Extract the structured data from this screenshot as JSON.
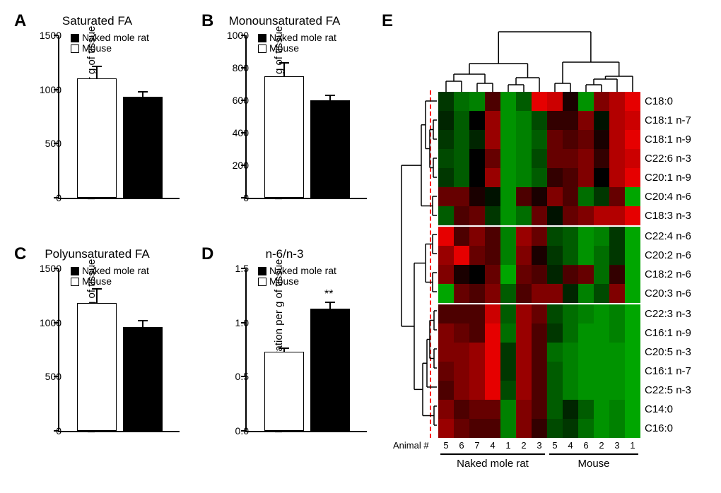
{
  "panels": {
    "A": {
      "letter": "A",
      "title": "Saturated FA",
      "ylabel": "Relative concentration per g of tissue",
      "ylim": [
        0,
        1500
      ],
      "ytick_step": 500,
      "bars": [
        {
          "label": "Mouse",
          "value": 1100,
          "err": 110,
          "color": "#ffffff"
        },
        {
          "label": "Naked mole rat",
          "value": 930,
          "err": 50,
          "color": "#000000"
        }
      ]
    },
    "B": {
      "letter": "B",
      "title": "Monounsaturated FA",
      "ylabel": "Relative concentration per g of tissue",
      "ylim": [
        0,
        1000
      ],
      "ytick_step": 200,
      "bars": [
        {
          "label": "Mouse",
          "value": 750,
          "err": 80,
          "color": "#ffffff"
        },
        {
          "label": "Naked mole rat",
          "value": 600,
          "err": 30,
          "color": "#000000"
        }
      ]
    },
    "C": {
      "letter": "C",
      "title": "Polyunsaturated FA",
      "ylabel": "Relative concentration per g of tissue",
      "ylim": [
        0,
        1500
      ],
      "ytick_step": 500,
      "bars": [
        {
          "label": "Mouse",
          "value": 1180,
          "err": 130,
          "color": "#ffffff"
        },
        {
          "label": "Naked mole rat",
          "value": 960,
          "err": 60,
          "color": "#000000"
        }
      ]
    },
    "D": {
      "letter": "D",
      "title": "n-6/n-3",
      "ylabel": "Relative concentration per g of tissue",
      "ylim": [
        0,
        1.5
      ],
      "ytick_step": 0.5,
      "sig": "**",
      "bars": [
        {
          "label": "Mouse",
          "value": 0.73,
          "err": 0.03,
          "color": "#ffffff"
        },
        {
          "label": "Naked mole rat",
          "value": 1.13,
          "err": 0.06,
          "color": "#000000"
        }
      ]
    }
  },
  "legend": {
    "items": [
      {
        "swatch": "#000000",
        "label": "Naked mole rat"
      },
      {
        "swatch": "#ffffff",
        "label": "Mouse"
      }
    ]
  },
  "heatmap": {
    "letter": "E",
    "row_labels": [
      "C18:0",
      "C18:1 n-7",
      "C18:1 n-9",
      "C22:6 n-3",
      "C20:1 n-9",
      "C20:4 n-6",
      "C18:3 n-3",
      "C22:4 n-6",
      "C20:2 n-6",
      "C18:2 n-6",
      "C20:3 n-6",
      "C22:3 n-3",
      "C16:1 n-9",
      "C20:5 n-3",
      "C16:1 n-7",
      "C22:5 n-3",
      "C14:0",
      "C16:0"
    ],
    "col_ids": [
      "5",
      "6",
      "7",
      "4",
      "1",
      "2",
      "3",
      "5",
      "4",
      "6",
      "2",
      "3",
      "1"
    ],
    "groups": [
      {
        "label": "Naked mole rat",
        "start": 0,
        "end": 7
      },
      {
        "label": "Mouse",
        "start": 7,
        "end": 13
      }
    ],
    "animal_label": "Animal #",
    "cluster_breaks": [
      7,
      11
    ],
    "colors": {
      "low": "#00b800",
      "mid": "#000000",
      "high": "#ff0000"
    },
    "values": [
      [
        -0.3,
        -0.6,
        -0.7,
        0.3,
        -0.8,
        -0.5,
        0.9,
        0.8,
        0.1,
        -0.8,
        0.5,
        0.7,
        0.9
      ],
      [
        -0.2,
        -0.5,
        0.0,
        0.6,
        -0.8,
        -0.7,
        -0.4,
        0.2,
        0.2,
        0.5,
        -0.1,
        0.7,
        0.8
      ],
      [
        -0.3,
        -0.5,
        -0.2,
        0.6,
        -0.8,
        -0.7,
        -0.5,
        0.4,
        0.3,
        0.4,
        0.1,
        0.7,
        0.9
      ],
      [
        -0.4,
        -0.5,
        0.0,
        0.4,
        -0.8,
        -0.7,
        -0.4,
        0.4,
        0.4,
        0.5,
        0.2,
        0.7,
        0.8
      ],
      [
        -0.3,
        -0.5,
        0.0,
        0.6,
        -0.8,
        -0.7,
        -0.5,
        0.2,
        0.3,
        0.5,
        0.0,
        0.7,
        0.9
      ],
      [
        0.4,
        0.4,
        0.1,
        -0.1,
        -0.8,
        0.3,
        0.1,
        0.5,
        0.3,
        -0.6,
        -0.3,
        0.4,
        -0.9
      ],
      [
        -0.5,
        0.3,
        0.4,
        -0.3,
        -0.8,
        -0.6,
        0.4,
        -0.1,
        0.4,
        0.5,
        0.7,
        0.7,
        0.9
      ],
      [
        0.9,
        0.3,
        0.5,
        0.3,
        -0.7,
        0.6,
        0.4,
        -0.4,
        -0.5,
        -0.8,
        -0.7,
        -0.3,
        -0.9
      ],
      [
        0.6,
        0.9,
        0.4,
        0.3,
        -0.7,
        0.5,
        0.1,
        -0.3,
        -0.5,
        -0.8,
        -0.6,
        -0.3,
        -0.9
      ],
      [
        0.5,
        0.1,
        0.0,
        0.4,
        -0.9,
        0.4,
        0.3,
        -0.2,
        0.3,
        0.4,
        -0.6,
        0.2,
        -0.9
      ],
      [
        -0.9,
        0.4,
        0.3,
        0.5,
        -0.5,
        0.3,
        0.5,
        0.5,
        -0.2,
        -0.7,
        -0.4,
        0.5,
        -0.9
      ],
      [
        0.3,
        0.3,
        0.3,
        0.8,
        -0.5,
        0.6,
        0.4,
        -0.4,
        -0.6,
        -0.7,
        -0.8,
        -0.7,
        -0.9
      ],
      [
        0.5,
        0.4,
        0.3,
        0.9,
        -0.6,
        0.6,
        0.3,
        -0.3,
        -0.6,
        -0.8,
        -0.8,
        -0.7,
        -0.9
      ],
      [
        0.5,
        0.5,
        0.6,
        0.9,
        -0.3,
        0.6,
        0.3,
        -0.6,
        -0.7,
        -0.8,
        -0.8,
        -0.8,
        -0.9
      ],
      [
        0.4,
        0.5,
        0.6,
        0.9,
        -0.3,
        0.6,
        0.3,
        -0.5,
        -0.7,
        -0.8,
        -0.8,
        -0.8,
        -0.9
      ],
      [
        0.3,
        0.5,
        0.6,
        0.9,
        -0.4,
        0.6,
        0.3,
        -0.5,
        -0.7,
        -0.8,
        -0.8,
        -0.8,
        -0.9
      ],
      [
        0.5,
        0.3,
        0.4,
        0.4,
        -0.7,
        0.5,
        0.3,
        -0.5,
        -0.2,
        -0.5,
        -0.8,
        -0.7,
        -0.9
      ],
      [
        0.6,
        0.4,
        0.3,
        0.3,
        -0.7,
        0.5,
        0.2,
        -0.4,
        -0.3,
        -0.6,
        -0.8,
        -0.7,
        -0.9
      ]
    ]
  }
}
